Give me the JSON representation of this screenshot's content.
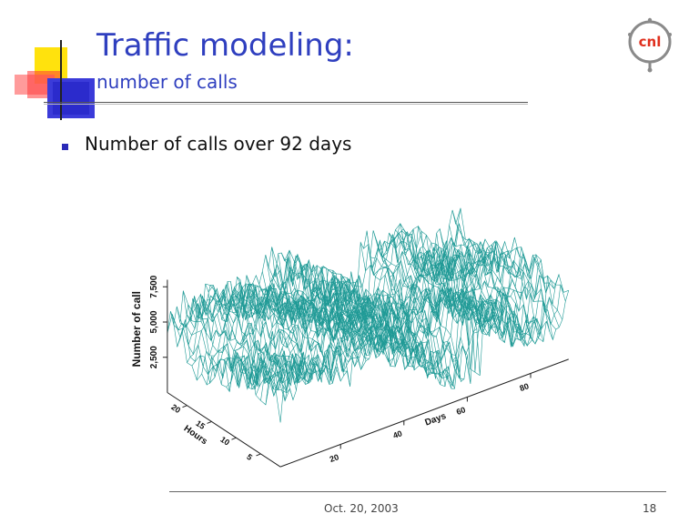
{
  "slide": {
    "title": "Traffic modeling:",
    "subtitle": "number of calls",
    "bullet": "Number of calls over 92 days",
    "footer_date": "Oct. 20, 2003",
    "page_number": "18",
    "logo_text": "cnl"
  },
  "colors": {
    "title": "#2f3fbf",
    "mesh": "#1f9a96",
    "bullet": "#2a2ab8"
  },
  "chart_data": {
    "type": "surface",
    "title": "",
    "zlabel": "Number of call",
    "ylabel": "Hours",
    "xlabel": "Days",
    "z_ticks": [
      "2,500",
      "5,000",
      "7,500"
    ],
    "y_ticks": [
      "5",
      "10",
      "15",
      "20"
    ],
    "x_ticks": [
      "20",
      "40",
      "60",
      "80"
    ],
    "x_range": [
      1,
      92
    ],
    "y_range": [
      1,
      24
    ],
    "z_range": [
      0,
      8000
    ],
    "description_values": "wireframe surface of call counts per hour over 92 days; values mostly between 2,500 and 7,500 with a peak near day 70"
  }
}
